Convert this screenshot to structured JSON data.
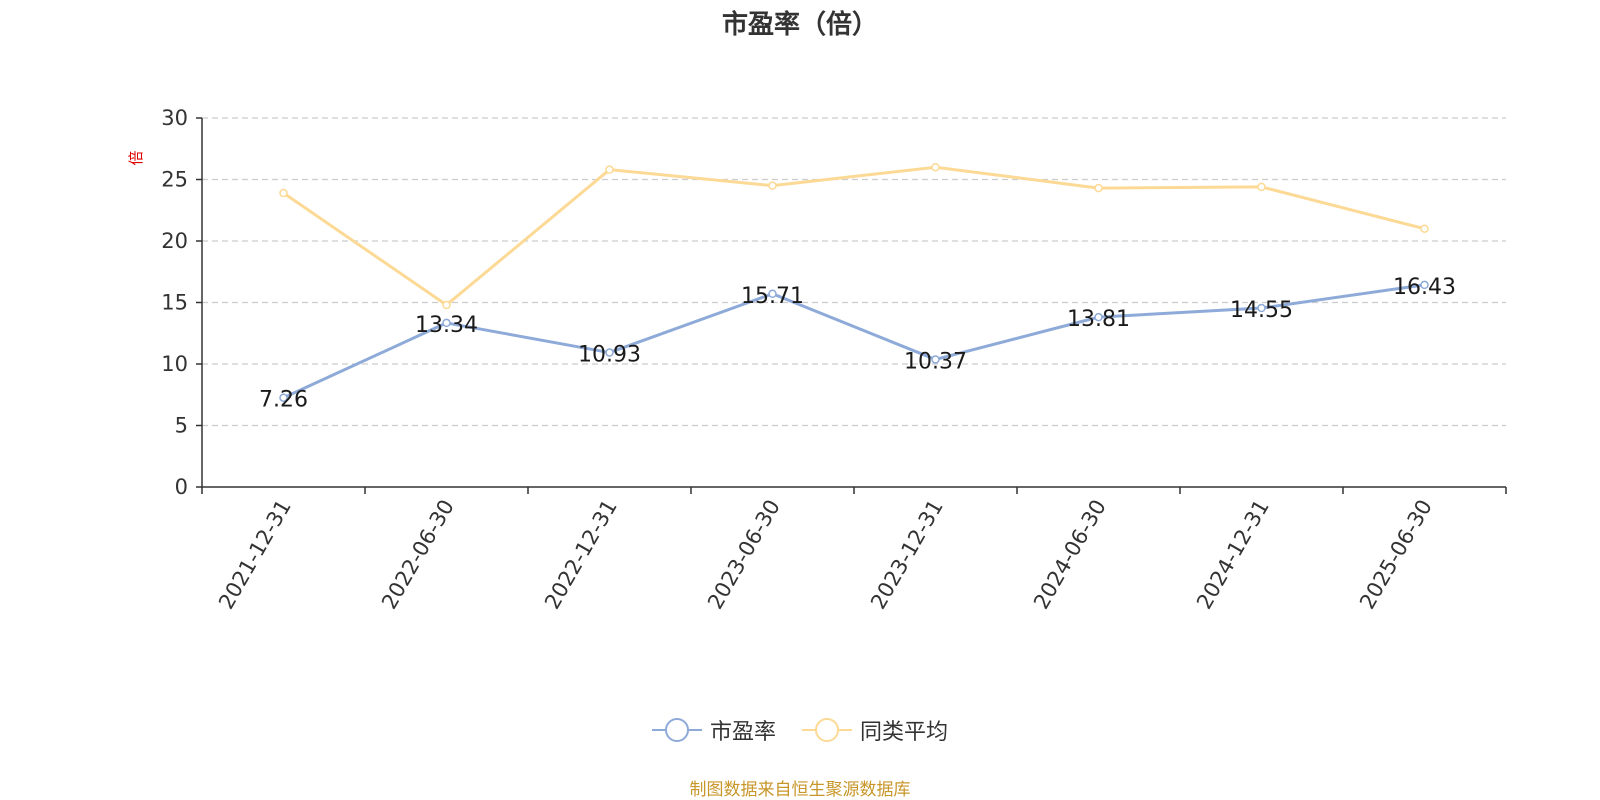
{
  "chart_data": {
    "type": "line",
    "title": "市盈率（倍）",
    "ylabel": "倍",
    "categories": [
      "2021-12-31",
      "2022-06-30",
      "2022-12-31",
      "2023-06-30",
      "2023-12-31",
      "2024-06-30",
      "2024-12-31",
      "2025-06-30"
    ],
    "ylim": [
      0,
      30
    ],
    "yticks": [
      0,
      5,
      10,
      15,
      20,
      25,
      30
    ],
    "grid": true,
    "legend_position": "bottom",
    "series": [
      {
        "name": "市盈率",
        "color": "#8eaad8",
        "values": [
          7.26,
          13.34,
          10.93,
          15.71,
          10.37,
          13.81,
          14.55,
          16.43
        ],
        "labels": [
          "7.26",
          "13.34",
          "10.93",
          "15.71",
          "10.37",
          "13.81",
          "14.55",
          "16.43"
        ]
      },
      {
        "name": "同类平均",
        "color": "#fcd995",
        "values": [
          23.9,
          14.8,
          25.8,
          24.5,
          26.0,
          24.3,
          24.4,
          21.0
        ]
      }
    ]
  },
  "source": "制图数据来自恒生聚源数据库"
}
